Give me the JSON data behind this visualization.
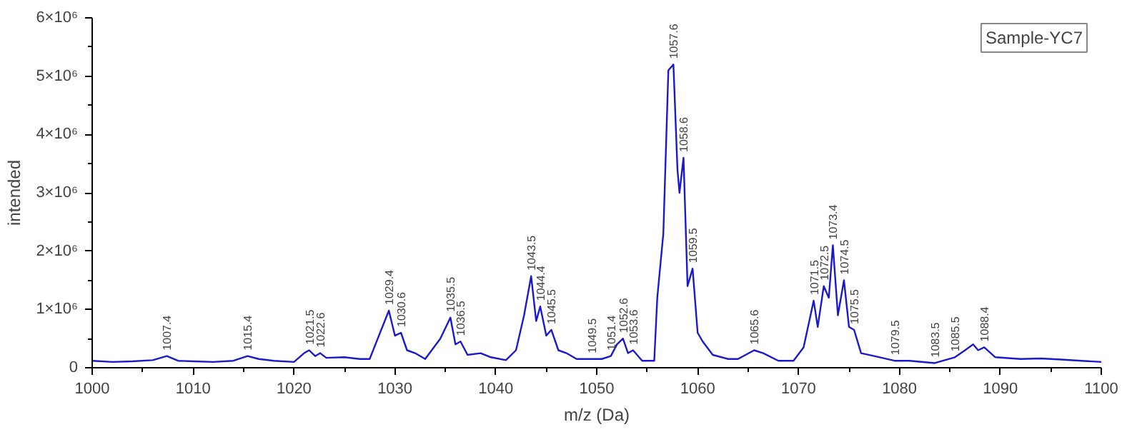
{
  "chart_data": {
    "type": "line",
    "xlabel": "m/z (Da)",
    "ylabel": "intended",
    "x": [
      1000,
      1002,
      1004,
      1006,
      1007.4,
      1008.5,
      1010,
      1012,
      1014,
      1015.4,
      1016.5,
      1018,
      1020,
      1021,
      1021.5,
      1022.1,
      1022.6,
      1023.2,
      1025,
      1026.5,
      1027.5,
      1028.3,
      1029.4,
      1030,
      1030.6,
      1031.2,
      1032,
      1033,
      1034.5,
      1035.5,
      1036,
      1036.5,
      1037.2,
      1038.5,
      1039.5,
      1041,
      1042,
      1042.8,
      1043.5,
      1044,
      1044.4,
      1045,
      1045.5,
      1046.2,
      1047,
      1048,
      1049.5,
      1050.5,
      1051.4,
      1052,
      1052.6,
      1053.1,
      1053.6,
      1054.5,
      1055.7,
      1056,
      1056.6,
      1057.1,
      1057.6,
      1058,
      1058.2,
      1058.6,
      1059,
      1059.5,
      1060,
      1060.5,
      1061.5,
      1063,
      1064,
      1065.6,
      1066.5,
      1068,
      1069.5,
      1070.5,
      1071.5,
      1071.9,
      1072.5,
      1073,
      1073.4,
      1073.9,
      1074.5,
      1075,
      1075.5,
      1076.2,
      1077.5,
      1079.5,
      1081,
      1083.5,
      1085.5,
      1086.5,
      1087.3,
      1087.8,
      1088.4,
      1089.5,
      1092,
      1094,
      1096,
      1098,
      1100
    ],
    "series": [
      {
        "color": "#1a1acc",
        "values": [
          120000,
          100000,
          110000,
          130000,
          200000,
          120000,
          110000,
          100000,
          120000,
          200000,
          150000,
          120000,
          100000,
          250000,
          300000,
          200000,
          250000,
          170000,
          180000,
          150000,
          150000,
          500000,
          980000,
          550000,
          600000,
          300000,
          250000,
          150000,
          500000,
          860000,
          400000,
          450000,
          220000,
          250000,
          180000,
          130000,
          300000,
          900000,
          1570000,
          800000,
          1050000,
          550000,
          650000,
          300000,
          250000,
          150000,
          150000,
          150000,
          200000,
          400000,
          500000,
          250000,
          300000,
          120000,
          120000,
          1200000,
          2300000,
          5100000,
          5200000,
          3400000,
          3000000,
          3600000,
          1400000,
          1700000,
          600000,
          450000,
          220000,
          150000,
          150000,
          300000,
          250000,
          120000,
          120000,
          350000,
          1150000,
          700000,
          1400000,
          1200000,
          2100000,
          900000,
          1500000,
          700000,
          650000,
          250000,
          200000,
          120000,
          120000,
          80000,
          180000,
          300000,
          400000,
          300000,
          350000,
          180000,
          150000,
          160000,
          140000,
          120000,
          100000
        ]
      }
    ],
    "xlim": [
      1000,
      1100
    ],
    "xticks": [
      1000,
      1010,
      1020,
      1030,
      1040,
      1050,
      1060,
      1070,
      1080,
      1090,
      1100
    ],
    "ylim": [
      0,
      6000000
    ],
    "yticks": [
      0,
      {
        "value": 1000000,
        "label": "1×10⁶"
      },
      {
        "value": 2000000,
        "label": "2×10⁶"
      },
      {
        "value": 3000000,
        "label": "3×10⁶"
      },
      {
        "value": 4000000,
        "label": "4×10⁶"
      },
      {
        "value": 5000000,
        "label": "5×10⁶"
      },
      {
        "value": 6000000,
        "label": "6×10⁶"
      }
    ],
    "grid": false,
    "line_style": "solid",
    "marker": "none",
    "annotations": [
      "Sample-YC7",
      {
        "text": "1007.4",
        "x": 1007.4,
        "y": 200000
      },
      {
        "text": "1015.4",
        "x": 1015.4,
        "y": 200000
      },
      {
        "text": "1021.5",
        "x": 1021.5,
        "y": 300000
      },
      {
        "text": "1022.6",
        "x": 1022.6,
        "y": 250000
      },
      {
        "text": "1029.4",
        "x": 1029.4,
        "y": 980000
      },
      {
        "text": "1030.6",
        "x": 1030.6,
        "y": 600000
      },
      {
        "text": "1035.5",
        "x": 1035.5,
        "y": 860000
      },
      {
        "text": "1036.5",
        "x": 1036.5,
        "y": 450000
      },
      {
        "text": "1043.5",
        "x": 1043.5,
        "y": 1570000
      },
      {
        "text": "1044.4",
        "x": 1044.4,
        "y": 1050000
      },
      {
        "text": "1045.5",
        "x": 1045.5,
        "y": 650000
      },
      {
        "text": "1049.5",
        "x": 1049.5,
        "y": 150000
      },
      {
        "text": "1051.4",
        "x": 1051.4,
        "y": 200000
      },
      {
        "text": "1052.6",
        "x": 1052.6,
        "y": 500000
      },
      {
        "text": "1053.6",
        "x": 1053.6,
        "y": 300000
      },
      {
        "text": "1057.6",
        "x": 1057.6,
        "y": 5200000
      },
      {
        "text": "1058.6",
        "x": 1058.6,
        "y": 3600000
      },
      {
        "text": "1059.5",
        "x": 1059.5,
        "y": 1700000
      },
      {
        "text": "1065.6",
        "x": 1065.6,
        "y": 300000
      },
      {
        "text": "1071.5",
        "x": 1071.5,
        "y": 1150000
      },
      {
        "text": "1072.5",
        "x": 1072.5,
        "y": 1400000
      },
      {
        "text": "1073.4",
        "x": 1073.4,
        "y": 2100000
      },
      {
        "text": "1074.5",
        "x": 1074.5,
        "y": 1500000
      },
      {
        "text": "1075.5",
        "x": 1075.5,
        "y": 650000
      },
      {
        "text": "1079.5",
        "x": 1079.5,
        "y": 120000
      },
      {
        "text": "1083.5",
        "x": 1083.5,
        "y": 80000
      },
      {
        "text": "1085.5",
        "x": 1085.5,
        "y": 180000
      },
      {
        "text": "1088.4",
        "x": 1088.4,
        "y": 350000
      }
    ]
  }
}
